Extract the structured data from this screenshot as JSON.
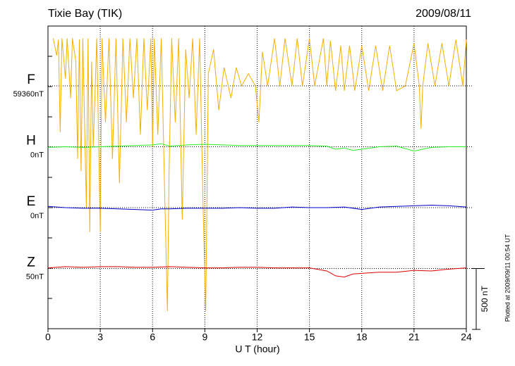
{
  "chart_data": {
    "type": "line",
    "title": "Tixie Bay (TIK)",
    "date": "2009/08/11",
    "xlabel": "U T (hour)",
    "xlim": [
      0,
      24
    ],
    "xticks": [
      0,
      3,
      6,
      9,
      12,
      15,
      18,
      21,
      24
    ],
    "grid": true,
    "scale_bar": {
      "value": 500,
      "label": "500 nT"
    },
    "footnote": "Plotted at 2009/09/11 00:54 UT",
    "series": [
      {
        "name": "F",
        "baseline_label": "59360nT",
        "color": "#f5b000",
        "x": [
          0.3,
          0.5,
          0.6,
          0.7,
          0.8,
          1.0,
          1.1,
          1.3,
          1.4,
          1.6,
          1.7,
          1.8,
          1.9,
          2.0,
          2.2,
          2.3,
          2.4,
          2.5,
          2.6,
          2.8,
          3.0,
          3.1,
          3.3,
          3.5,
          3.7,
          3.9,
          4.1,
          4.3,
          4.5,
          4.7,
          4.9,
          5.1,
          5.3,
          5.5,
          5.7,
          5.9,
          6.0,
          6.1,
          6.3,
          6.5,
          6.7,
          6.85,
          6.95,
          7.1,
          7.3,
          7.5,
          7.7,
          7.9,
          8.1,
          8.3,
          8.5,
          8.7,
          8.9,
          9.05,
          9.2,
          9.5,
          9.8,
          10.1,
          10.5,
          10.8,
          11.1,
          11.5,
          11.9,
          12.1,
          12.3,
          12.6,
          13.0,
          13.3,
          13.6,
          14.0,
          14.3,
          14.6,
          15.0,
          15.3,
          15.8,
          16.0,
          16.2,
          16.5,
          16.8,
          17.0,
          17.3,
          17.6,
          18.0,
          18.4,
          18.8,
          19.2,
          19.6,
          20.0,
          20.5,
          21.0,
          21.3,
          21.4,
          21.5,
          21.8,
          22.2,
          22.6,
          23.0,
          23.4,
          23.8,
          24.0
        ],
        "values": [
          390,
          250,
          380,
          -380,
          390,
          60,
          390,
          -100,
          390,
          200,
          -600,
          380,
          -700,
          390,
          -1000,
          390,
          -1200,
          200,
          -500,
          390,
          -1200,
          390,
          -300,
          390,
          -600,
          390,
          -800,
          390,
          -300,
          390,
          -100,
          390,
          -400,
          390,
          -200,
          390,
          -500,
          390,
          -400,
          390,
          -900,
          -1850,
          -700,
          390,
          -300,
          390,
          -1100,
          300,
          -100,
          390,
          -400,
          390,
          -1000,
          -1850,
          100,
          300,
          -200,
          150,
          -100,
          150,
          0,
          100,
          0,
          -300,
          280,
          0,
          390,
          0,
          390,
          0,
          390,
          0,
          390,
          0,
          390,
          0,
          370,
          -40,
          330,
          -40,
          330,
          -40,
          330,
          -40,
          330,
          -40,
          330,
          -40,
          0,
          350,
          0,
          -350,
          0,
          350,
          0,
          350,
          0,
          380,
          0,
          380
        ]
      },
      {
        "name": "H",
        "baseline_label": "0nT",
        "color": "#22ee22",
        "x": [
          0,
          1,
          2,
          3,
          4,
          5,
          6,
          6.5,
          7,
          8,
          9,
          10,
          11,
          12,
          13,
          14,
          15,
          16,
          16.5,
          17,
          17.5,
          18,
          19,
          20,
          21,
          22,
          23,
          24
        ],
        "values": [
          -5,
          0,
          -5,
          0,
          5,
          10,
          15,
          25,
          5,
          15,
          20,
          15,
          10,
          10,
          10,
          10,
          10,
          5,
          -20,
          -10,
          -30,
          -20,
          0,
          5,
          -35,
          -5,
          0,
          0
        ]
      },
      {
        "name": "E",
        "baseline_label": "0nT",
        "color": "#0000cc",
        "x": [
          0,
          1,
          2,
          3,
          4,
          5,
          6,
          6.5,
          7,
          8,
          9,
          10,
          11,
          12,
          13,
          14,
          15,
          16,
          17,
          18,
          19,
          20,
          21,
          22,
          23,
          24
        ],
        "values": [
          10,
          0,
          -5,
          -5,
          -10,
          -15,
          -20,
          -10,
          -10,
          -5,
          -5,
          -5,
          0,
          -5,
          -5,
          5,
          0,
          0,
          5,
          -15,
          5,
          10,
          15,
          20,
          15,
          5
        ]
      },
      {
        "name": "Z",
        "baseline_label": "50nT",
        "color": "#dd0000",
        "x": [
          0,
          1,
          2,
          3,
          4,
          5,
          6,
          7,
          8,
          9,
          10,
          11,
          12,
          13,
          14,
          15,
          16,
          16.5,
          17,
          17.5,
          18,
          19,
          20,
          21,
          22,
          23,
          24
        ],
        "values": [
          5,
          15,
          10,
          15,
          15,
          10,
          10,
          15,
          10,
          5,
          5,
          10,
          10,
          5,
          5,
          5,
          -20,
          -60,
          -70,
          -45,
          -40,
          -30,
          -30,
          -15,
          -20,
          -5,
          5
        ]
      }
    ]
  }
}
